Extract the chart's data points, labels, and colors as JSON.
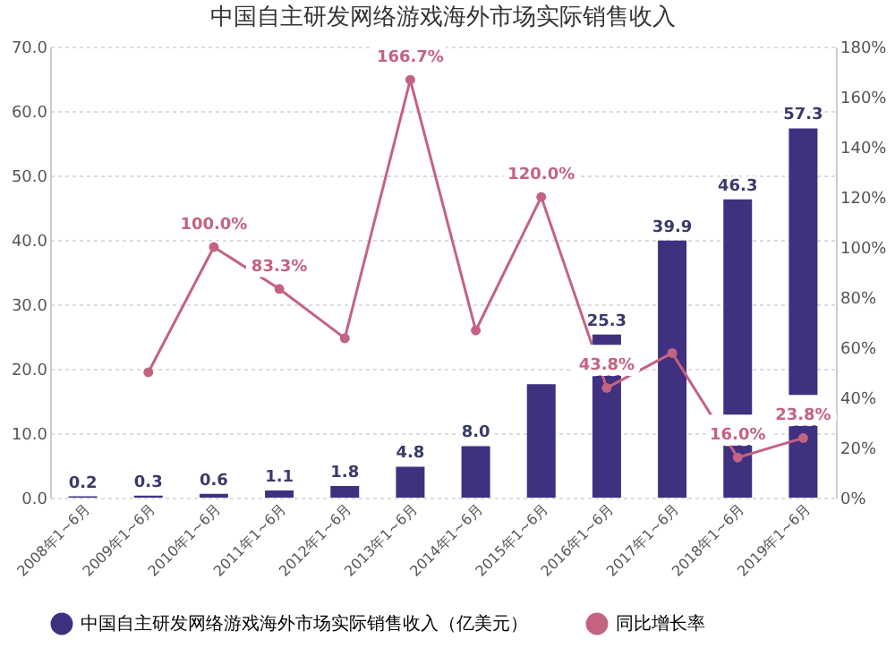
{
  "chart_data": {
    "type": "bar",
    "title": "中国自主研发网络游戏海外市场实际销售收入",
    "categories": [
      "2008年1~6月",
      "2009年1~6月",
      "2010年1~6月",
      "2011年1~6月",
      "2012年1~6月",
      "2013年1~6月",
      "2014年1~6月",
      "2015年1~6月",
      "2016年1~6月",
      "2017年1~6月",
      "2018年1~6月",
      "2019年1~6月"
    ],
    "series": [
      {
        "name": "中国自主研发网络游戏海外市场实际销售收入（亿美元）",
        "color": "#3f3180",
        "values": [
          0.2,
          0.3,
          0.6,
          1.1,
          1.8,
          4.8,
          8.0,
          17.6,
          25.3,
          39.9,
          46.3,
          57.3
        ],
        "value_labels": [
          "0.2",
          "0.3",
          "0.6",
          "1.1",
          "1.8",
          "4.8",
          "8.0",
          null,
          "25.3",
          "39.9",
          "46.3",
          "57.3"
        ]
      },
      {
        "name": "同比增长率",
        "type": "line",
        "axis": "y2",
        "color": "#c4637f",
        "marker": "circle",
        "values": [
          null,
          50.0,
          100.0,
          83.3,
          63.6,
          166.7,
          66.7,
          120.0,
          43.8,
          57.7,
          16.0,
          23.8
        ],
        "value_labels": [
          null,
          null,
          "100.0%",
          "83.3%",
          null,
          "166.7%",
          null,
          "120.0%",
          "43.8%",
          null,
          "16.0%",
          "23.8%"
        ]
      }
    ],
    "ylim": [
      0,
      70
    ],
    "yticks": [
      {
        "value": 0,
        "label": "0.0"
      },
      {
        "value": 10,
        "label": "10.0"
      },
      {
        "value": 20,
        "label": "20.0"
      },
      {
        "value": 30,
        "label": "30.0"
      },
      {
        "value": 40,
        "label": "40.0"
      },
      {
        "value": 50,
        "label": "50.0"
      },
      {
        "value": 60,
        "label": "60.0"
      },
      {
        "value": 70,
        "label": "70.0"
      }
    ],
    "y2lim": [
      0,
      180
    ],
    "y2ticks": [
      {
        "value": 0,
        "label": "0%"
      },
      {
        "value": 20,
        "label": "20%"
      },
      {
        "value": 40,
        "label": "40%"
      },
      {
        "value": 60,
        "label": "60%"
      },
      {
        "value": 80,
        "label": "80%"
      },
      {
        "value": 100,
        "label": "100%"
      },
      {
        "value": 120,
        "label": "120%"
      },
      {
        "value": 140,
        "label": "140%"
      },
      {
        "value": 160,
        "label": "160%"
      },
      {
        "value": 180,
        "label": "180%"
      }
    ],
    "grid": "y",
    "legend": "bottom"
  }
}
